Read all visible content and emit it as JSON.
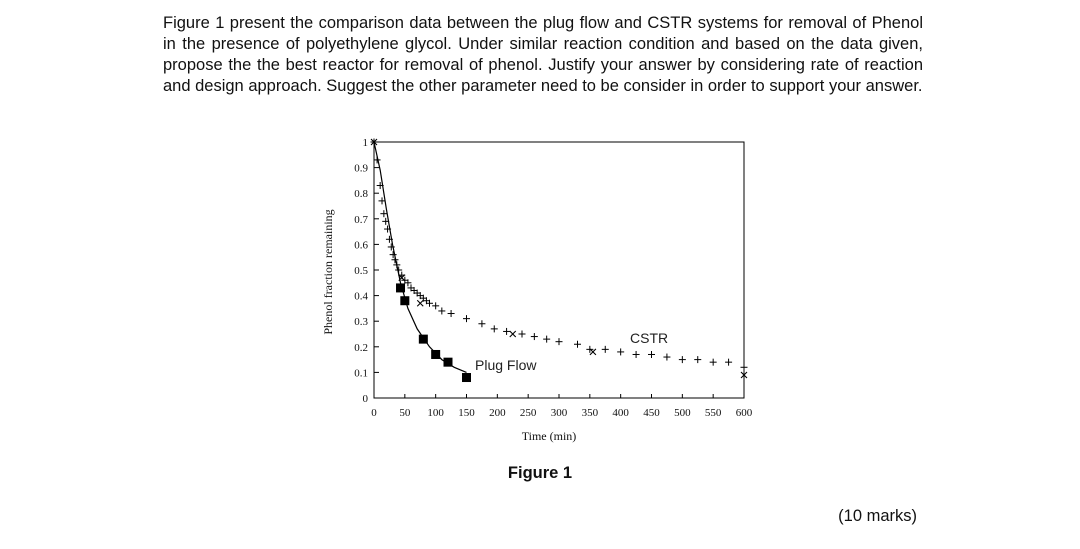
{
  "question": {
    "text": "Figure 1 present the comparison data between the plug flow and CSTR systems for removal of Phenol in the presence of polyethylene glycol. Under similar reaction condition and based on the data given,  propose the the best reactor for removal of phenol. Justify your answer by considering rate of reaction and design approach. Suggest the other parameter need to be consider in order to support your answer."
  },
  "figure_caption": "Figure 1",
  "marks": "(10 marks)",
  "chart_data": {
    "type": "scatter",
    "title": "",
    "xlabel": "Time (min)",
    "ylabel": "Phenol fraction remaining",
    "xlim": [
      0,
      600
    ],
    "ylim": [
      0,
      1
    ],
    "x_ticks": [
      "0",
      "50",
      "100",
      "150",
      "200",
      "250",
      "300",
      "350",
      "400",
      "450",
      "500",
      "550",
      "600"
    ],
    "y_ticks": [
      "0",
      "0.1",
      "0.2",
      "0.3",
      "0.4",
      "0.5",
      "0.6",
      "0.7",
      "0.8",
      "0.9",
      "1"
    ],
    "grid": false,
    "series": [
      {
        "name": "Plug Flow",
        "marker": "square",
        "color": "#000000",
        "points": [
          [
            43,
            0.43
          ],
          [
            50,
            0.38
          ],
          [
            80,
            0.23
          ],
          [
            100,
            0.17
          ],
          [
            120,
            0.14
          ],
          [
            150,
            0.08
          ]
        ],
        "fit_curve": [
          [
            0,
            1.0
          ],
          [
            10,
            0.89
          ],
          [
            20,
            0.74
          ],
          [
            30,
            0.6
          ],
          [
            43,
            0.45
          ],
          [
            55,
            0.35
          ],
          [
            70,
            0.27
          ],
          [
            90,
            0.2
          ],
          [
            110,
            0.15
          ],
          [
            130,
            0.12
          ],
          [
            150,
            0.1
          ]
        ]
      },
      {
        "name": "CSTR",
        "marker": "plus",
        "color": "#000000",
        "points": [
          [
            0,
            1.0
          ],
          [
            5,
            0.93
          ],
          [
            10,
            0.83
          ],
          [
            13,
            0.77
          ],
          [
            16,
            0.72
          ],
          [
            19,
            0.69
          ],
          [
            22,
            0.66
          ],
          [
            25,
            0.62
          ],
          [
            28,
            0.59
          ],
          [
            31,
            0.56
          ],
          [
            34,
            0.54
          ],
          [
            37,
            0.52
          ],
          [
            40,
            0.5
          ],
          [
            45,
            0.48
          ],
          [
            50,
            0.46
          ],
          [
            55,
            0.45
          ],
          [
            60,
            0.43
          ],
          [
            65,
            0.42
          ],
          [
            70,
            0.41
          ],
          [
            75,
            0.4
          ],
          [
            80,
            0.39
          ],
          [
            85,
            0.38
          ],
          [
            90,
            0.37
          ],
          [
            100,
            0.36
          ],
          [
            110,
            0.34
          ],
          [
            125,
            0.33
          ],
          [
            150,
            0.31
          ],
          [
            175,
            0.29
          ],
          [
            195,
            0.27
          ],
          [
            215,
            0.26
          ],
          [
            240,
            0.25
          ],
          [
            260,
            0.24
          ],
          [
            280,
            0.23
          ],
          [
            300,
            0.22
          ],
          [
            330,
            0.21
          ],
          [
            350,
            0.19
          ],
          [
            375,
            0.19
          ],
          [
            400,
            0.18
          ],
          [
            425,
            0.17
          ],
          [
            450,
            0.17
          ],
          [
            475,
            0.16
          ],
          [
            500,
            0.15
          ],
          [
            525,
            0.15
          ],
          [
            550,
            0.14
          ],
          [
            575,
            0.14
          ],
          [
            600,
            0.12
          ]
        ]
      },
      {
        "name": "",
        "marker": "x",
        "color": "#000000",
        "points": [
          [
            0,
            1.0
          ],
          [
            45,
            0.47
          ],
          [
            75,
            0.37
          ],
          [
            225,
            0.25
          ],
          [
            355,
            0.18
          ],
          [
            600,
            0.09
          ]
        ]
      }
    ],
    "annotations": [
      "CSTR",
      "Plug Flow"
    ]
  }
}
